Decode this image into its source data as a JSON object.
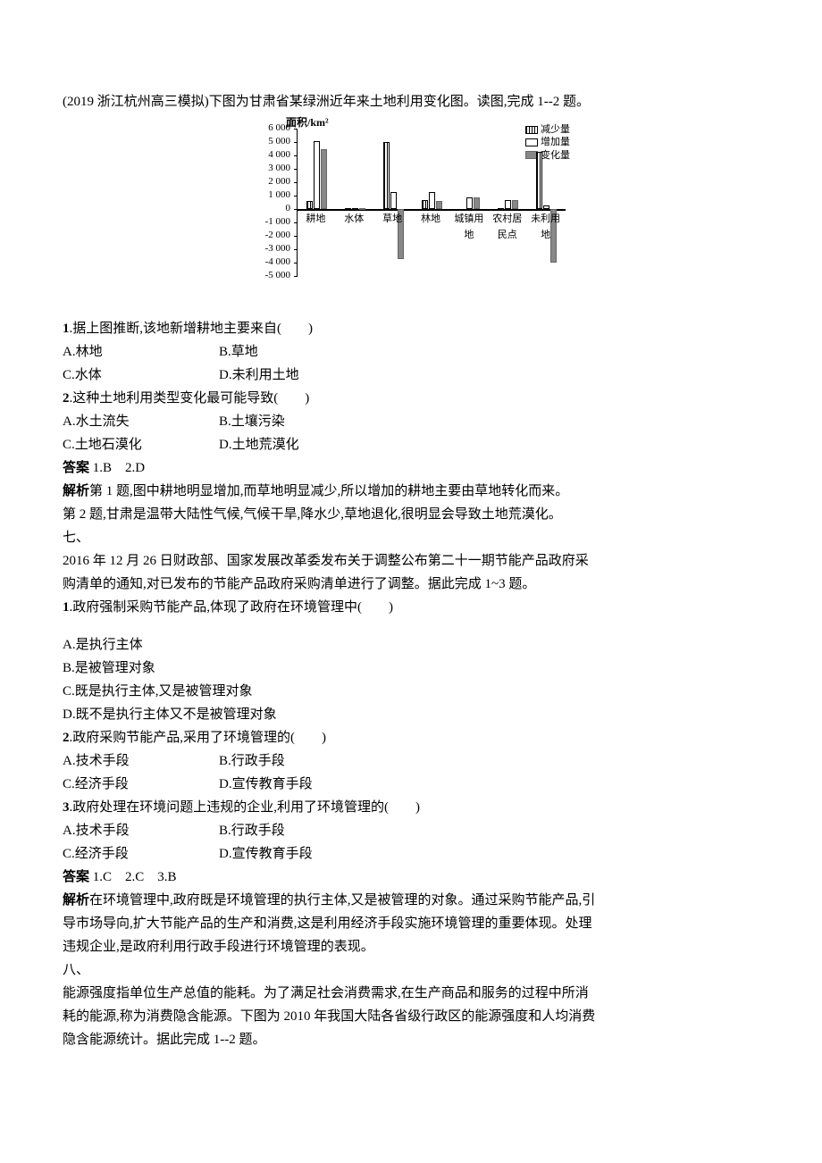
{
  "intro_q6": "(2019 浙江杭州高三模拟)下图为甘肃省某绿洲近年来土地利用变化图。读图,完成 1--2 题。",
  "chart": {
    "type": "bar",
    "y_title": "面积/km²",
    "y_min": -5000,
    "y_max": 6000,
    "y_step": 1000,
    "zero": 0,
    "categories": [
      "耕地",
      "水体",
      "草地",
      "林地",
      "城镇用地",
      "农村居民点",
      "未利用地"
    ],
    "series": {
      "decrease": {
        "label": "减少量",
        "values": [
          600,
          50,
          5000,
          700,
          0,
          50,
          4300
        ]
      },
      "increase": {
        "label": "增加量",
        "values": [
          5100,
          100,
          1300,
          1300,
          900,
          700,
          300
        ]
      },
      "change": {
        "label": "变化量",
        "values": [
          4500,
          50,
          -3700,
          600,
          900,
          650,
          -4000
        ]
      }
    },
    "colors": {
      "axis": "#000000",
      "decrease_fill": "stripes",
      "increase_fill": "#ffffff",
      "change_fill": "#888888",
      "background": "#ffffff"
    },
    "fontsize_axis": 11,
    "fontsize_title": 12
  },
  "q1": {
    "stem_num": "1",
    "stem": ".据上图推断,该地新增耕地主要来自(　　)",
    "A": "A.林地",
    "B": "B.草地",
    "C": "C.水体",
    "D": "D.未利用土地"
  },
  "q2": {
    "stem_num": "2",
    "stem": ".这种土地利用类型变化最可能导致(　　)",
    "A": "A.水土流失",
    "B": "B.土壤污染",
    "C": "C.土地石漠化",
    "D": "D.土地荒漠化"
  },
  "ans6_label": "答案",
  "ans6": " 1.B　2.D",
  "exp6_label": "解析",
  "exp6a": "第 1 题,图中耕地明显增加,而草地明显减少,所以增加的耕地主要由草地转化而来。",
  "exp6b": "第 2 题,甘肃是温带大陆性气候,气候干旱,降水少,草地退化,很明显会导致土地荒漠化。",
  "sec7": "七、",
  "intro_q7a": "2016 年 12 月 26 日财政部、国家发展改革委发布关于调整公布第二十一期节能产品政府采",
  "intro_q7b": "购清单的通知,对已发布的节能产品政府采购清单进行了调整。据此完成 1~3 题。",
  "q7_1": {
    "stem_num": "1",
    "stem": ".政府强制采购节能产品,体现了政府在环境管理中(　　)",
    "A": "A.是执行主体",
    "B": "B.是被管理对象",
    "C": "C.既是执行主体,又是被管理对象",
    "D": "D.既不是执行主体又不是被管理对象"
  },
  "q7_2": {
    "stem_num": "2",
    "stem": ".政府采购节能产品,采用了环境管理的(　　)",
    "A": "A.技术手段",
    "B": "B.行政手段",
    "C": "C.经济手段",
    "D": "D.宣传教育手段"
  },
  "q7_3": {
    "stem_num": "3",
    "stem": ".政府处理在环境问题上违规的企业,利用了环境管理的(　　)",
    "A": "A.技术手段",
    "B": "B.行政手段",
    "C": "C.经济手段",
    "D": "D.宣传教育手段"
  },
  "ans7_label": "答案",
  "ans7": " 1.C　2.C　3.B",
  "exp7_label": "解析",
  "exp7a": "在环境管理中,政府既是环境管理的执行主体,又是被管理的对象。通过采购节能产品,引",
  "exp7b": "导市场导向,扩大节能产品的生产和消费,这是利用经济手段实施环境管理的重要体现。处理",
  "exp7c": "违规企业,是政府利用行政手段进行环境管理的表现。",
  "sec8": "八、",
  "intro_q8a": "能源强度指单位生产总值的能耗。为了满足社会消费需求,在生产商品和服务的过程中所消",
  "intro_q8b": "耗的能源,称为消费隐含能源。下图为 2010 年我国大陆各省级行政区的能源强度和人均消费",
  "intro_q8c": "隐含能源统计。据此完成 1--2 题。"
}
